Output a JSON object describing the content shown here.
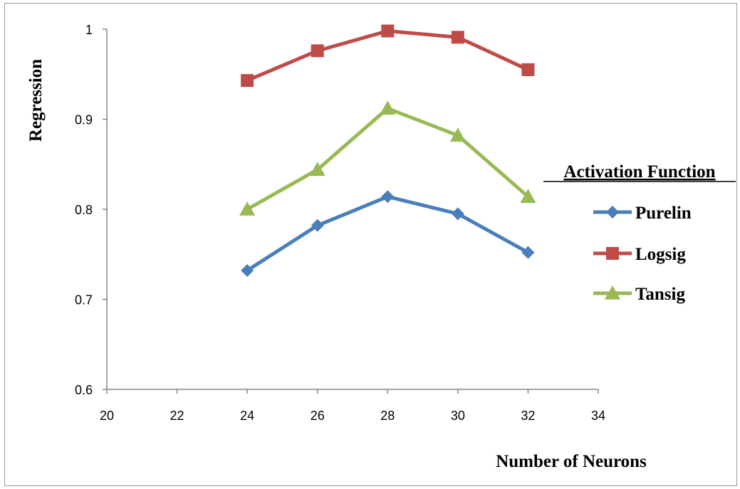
{
  "chart_data": {
    "type": "line",
    "xlabel": "Number of Neurons",
    "ylabel": "Regression",
    "xlim": [
      20,
      34
    ],
    "ylim": [
      0.6,
      1.0
    ],
    "x_ticks": [
      "20",
      "22",
      "24",
      "26",
      "28",
      "30",
      "32",
      "34"
    ],
    "y_ticks": [
      "0.6",
      "0.7",
      "0.8",
      "0.9",
      "1"
    ],
    "x": [
      24,
      26,
      28,
      30,
      32
    ],
    "legend_title": "Activation Function",
    "legend_position": "right",
    "grid": false,
    "series": [
      {
        "name": "Purelin",
        "values": [
          0.732,
          0.782,
          0.814,
          0.795,
          0.752
        ],
        "color": "#4a7ebb",
        "marker": "diamond"
      },
      {
        "name": "Logsig",
        "values": [
          0.943,
          0.976,
          0.998,
          0.991,
          0.955
        ],
        "color": "#be4b48",
        "marker": "square"
      },
      {
        "name": "Tansig",
        "values": [
          0.8,
          0.844,
          0.912,
          0.882,
          0.814
        ],
        "color": "#98b954",
        "marker": "triangle"
      }
    ]
  }
}
